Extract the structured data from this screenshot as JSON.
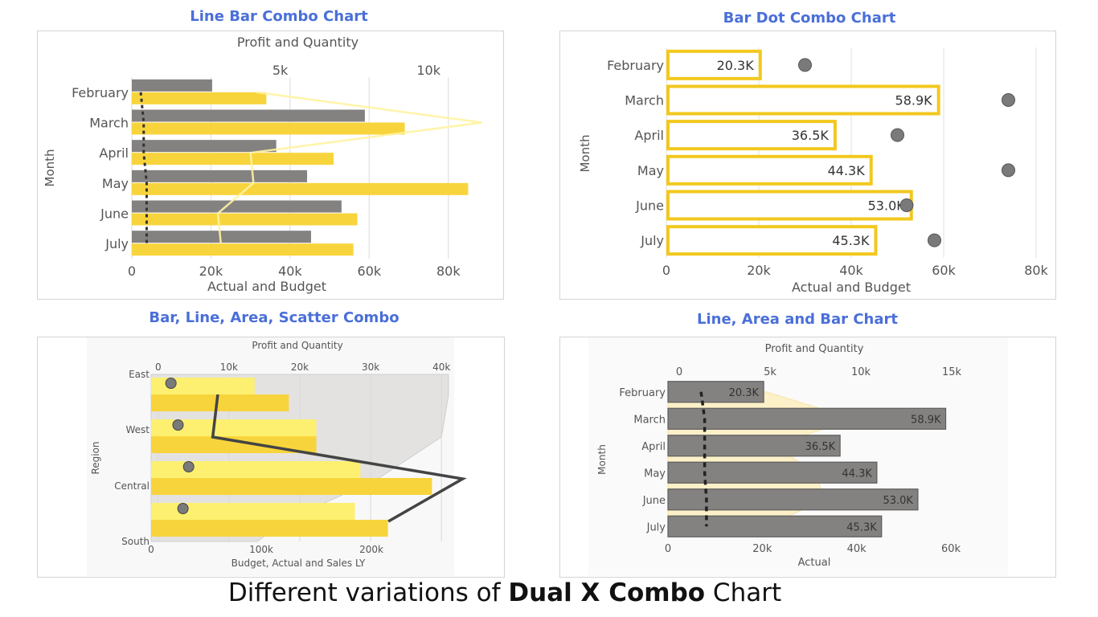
{
  "caption": {
    "prefix": "Different variations of ",
    "bold": "Dual X Combo",
    "suffix": " Chart"
  },
  "chart_data": [
    {
      "type": "bar",
      "title": "Line Bar Combo Chart",
      "categories": [
        "February",
        "March",
        "April",
        "May",
        "June",
        "July"
      ],
      "ylabel": "Month",
      "xlabel": "Actual and Budget",
      "x2label": "Profit and Quantity",
      "xlim": [
        0,
        90000
      ],
      "x2lim": [
        0,
        12000
      ],
      "xticks": [
        "0",
        "20k",
        "40k",
        "60k",
        "80k"
      ],
      "xtick_values": [
        0,
        20000,
        40000,
        60000,
        80000
      ],
      "x2ticks": [
        "5k",
        "10k"
      ],
      "x2tick_values": [
        5000,
        10000
      ],
      "series": [
        {
          "name": "Actual",
          "axis": "x",
          "values": [
            20300,
            58900,
            36500,
            44300,
            53000,
            45300
          ],
          "color": "#848280"
        },
        {
          "name": "Budget",
          "axis": "x",
          "values": [
            34000,
            69000,
            51000,
            85000,
            57000,
            56000
          ],
          "color": "#f8d43c"
        },
        {
          "name": "Quantity",
          "axis": "x2",
          "kind": "line",
          "values": [
            4200,
            11800,
            4000,
            4100,
            2900,
            3000
          ],
          "color": "#fff3a0"
        },
        {
          "name": "Profit",
          "axis": "x2",
          "kind": "line",
          "values": [
            300,
            400,
            400,
            500,
            500,
            500
          ],
          "color": "#333333"
        }
      ]
    },
    {
      "type": "bar",
      "title": "Bar Dot Combo Chart",
      "categories": [
        "February",
        "March",
        "April",
        "May",
        "June",
        "July"
      ],
      "ylabel": "Month",
      "xlabel": "Actual and Budget",
      "xlim": [
        0,
        80000
      ],
      "xticks": [
        "0",
        "20k",
        "40k",
        "60k",
        "80k"
      ],
      "xtick_values": [
        0,
        20000,
        40000,
        60000,
        80000
      ],
      "series": [
        {
          "name": "Actual",
          "kind": "bar",
          "values": [
            20300,
            58900,
            36500,
            44300,
            53000,
            45300
          ],
          "labels": [
            "20.3K",
            "58.9K",
            "36.5K",
            "44.3K",
            "53.0K",
            "45.3K"
          ],
          "color": "#f2c81e"
        },
        {
          "name": "Budget",
          "kind": "dot",
          "values": [
            30000,
            74000,
            50000,
            74000,
            52000,
            58000
          ],
          "color": "#7a7a7a"
        }
      ]
    },
    {
      "type": "bar",
      "title": "Bar, Line, Area, Scatter Combo",
      "categories": [
        "East",
        "West",
        "Central",
        "South"
      ],
      "ylabel": "Region",
      "xlabel": "Budget, Actual and Sales LY",
      "x2label": "Profit and Quantity",
      "xlim": [
        0,
        270000
      ],
      "x2lim": [
        -1000,
        41000
      ],
      "xticks": [
        "0",
        "100k",
        "200k"
      ],
      "xtick_values": [
        0,
        100000,
        200000
      ],
      "x2ticks": [
        "0",
        "10k",
        "20k",
        "30k",
        "40k"
      ],
      "x2tick_values": [
        0,
        10000,
        20000,
        30000,
        40000
      ],
      "series": [
        {
          "name": "Budget",
          "axis": "x",
          "values": [
            94000,
            150000,
            190000,
            185000
          ],
          "color": "#fdf070"
        },
        {
          "name": "Actual",
          "axis": "x",
          "values": [
            125000,
            150000,
            255000,
            215000
          ],
          "color": "#f8d43c"
        },
        {
          "name": "Sales LY",
          "axis": "x2",
          "kind": "area",
          "values": [
            41000,
            40000,
            31000,
            18000
          ],
          "color": "#e4e2e0"
        },
        {
          "name": "Quantity",
          "axis": "x2",
          "kind": "line",
          "values": [
            8400,
            7700,
            43000,
            32500
          ],
          "color": "#444444"
        },
        {
          "name": "Profit",
          "axis": "x2",
          "kind": "scatter",
          "values": [
            1800,
            2800,
            4300,
            3500
          ],
          "color": "#7a7a7a"
        }
      ]
    },
    {
      "type": "bar",
      "title": "Line, Area and Bar Chart",
      "categories": [
        "February",
        "March",
        "April",
        "May",
        "June",
        "July"
      ],
      "ylabel": "Month",
      "xlabel": "Actual",
      "x2label": "Profit and Quantity",
      "xlim": [
        0,
        60000
      ],
      "x2lim": [
        0,
        15000
      ],
      "xticks": [
        "0",
        "20k",
        "40k",
        "60k"
      ],
      "xtick_values": [
        0,
        20000,
        40000,
        60000
      ],
      "x2ticks": [
        "0",
        "5k",
        "10k",
        "15k"
      ],
      "x2tick_values": [
        0,
        5000,
        10000,
        15000
      ],
      "series": [
        {
          "name": "Actual",
          "axis": "x",
          "kind": "bar",
          "values": [
            20300,
            58900,
            36500,
            44300,
            53000,
            45300
          ],
          "labels": [
            "20.3K",
            "58.9K",
            "36.5K",
            "44.3K",
            "53.0K",
            "45.3K"
          ],
          "color": "#848280"
        },
        {
          "name": "Quantity",
          "axis": "x2",
          "kind": "area",
          "values": [
            4800,
            9600,
            5200,
            7500,
            8000,
            4800
          ],
          "color": "#fde68a"
        },
        {
          "name": "Profit",
          "axis": "x2",
          "kind": "line",
          "values": [
            1200,
            1400,
            1400,
            1400,
            1500,
            1500
          ],
          "color": "#222222"
        }
      ]
    }
  ]
}
